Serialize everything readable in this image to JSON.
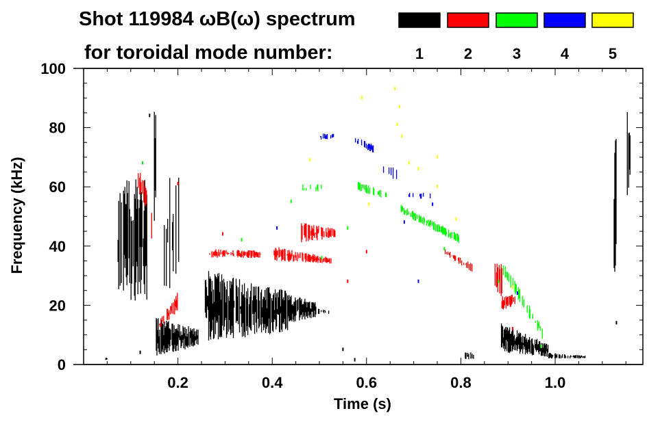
{
  "chart_data": {
    "type": "heatmap",
    "title_line1": "Shot 119984 ωB(ω) spectrum",
    "title_line2": "for toroidal mode number:",
    "xlabel": "Time (s)",
    "ylabel": "Frequency (kHz)",
    "xlim": [
      0,
      1.186
    ],
    "ylim": [
      0,
      100
    ],
    "x_ticks": [
      {
        "v": 0.2,
        "label": "0.2"
      },
      {
        "v": 0.4,
        "label": "0.4"
      },
      {
        "v": 0.6,
        "label": "0.6"
      },
      {
        "v": 0.8,
        "label": "0.8"
      },
      {
        "v": 1.0,
        "label": "1.0"
      }
    ],
    "y_ticks": [
      {
        "v": 0,
        "label": "0"
      },
      {
        "v": 20,
        "label": "20"
      },
      {
        "v": 40,
        "label": "40"
      },
      {
        "v": 60,
        "label": "60"
      },
      {
        "v": 80,
        "label": "80"
      },
      {
        "v": 100,
        "label": "100"
      }
    ],
    "x_minor_step": 0.05,
    "y_minor_step": 5,
    "legend": [
      {
        "mode": "1",
        "label": "1",
        "color": "#000000"
      },
      {
        "mode": "2",
        "label": "2",
        "color": "#ff0000"
      },
      {
        "mode": "3",
        "label": "3",
        "color": "#00ff00"
      },
      {
        "mode": "4",
        "label": "4",
        "color": "#0000ff"
      },
      {
        "mode": "5",
        "label": "5",
        "color": "#ffff00"
      }
    ],
    "regions": [
      {
        "mode": "1",
        "t": [
          0.073,
          0.135
        ],
        "f_start": [
          22,
          62
        ],
        "f_end": [
          21,
          63
        ],
        "density": 0.75
      },
      {
        "mode": "1",
        "t": [
          0.15,
          0.154
        ],
        "f_start": [
          45,
          86
        ],
        "f_end": [
          45,
          86
        ],
        "density": 0.8
      },
      {
        "mode": "1",
        "t": [
          0.171,
          0.215
        ],
        "f_start": [
          20,
          66
        ],
        "f_end": [
          35,
          67
        ],
        "density": 0.3
      },
      {
        "mode": "1",
        "t": [
          0.154,
          0.244
        ],
        "f_start": [
          3,
          16
        ],
        "f_end": [
          6,
          12
        ],
        "density": 0.95
      },
      {
        "mode": "1",
        "t": [
          0.258,
          0.338
        ],
        "f_start": [
          8,
          32
        ],
        "f_end": [
          9,
          29
        ],
        "density": 0.95
      },
      {
        "mode": "1",
        "t": [
          0.338,
          0.433
        ],
        "f_start": [
          9,
          28
        ],
        "f_end": [
          11,
          25
        ],
        "density": 0.9
      },
      {
        "mode": "1",
        "t": [
          0.433,
          0.494
        ],
        "f_start": [
          14,
          24
        ],
        "f_end": [
          16,
          21
        ],
        "density": 0.9
      },
      {
        "mode": "1",
        "t": [
          0.498,
          0.52
        ],
        "f_start": [
          17,
          19
        ],
        "f_end": [
          17,
          19
        ],
        "density": 0.6
      },
      {
        "mode": "1",
        "t": [
          0.805,
          0.83
        ],
        "f_start": [
          1.5,
          4
        ],
        "f_end": [
          2,
          4.5
        ],
        "density": 0.4
      },
      {
        "mode": "1",
        "t": [
          0.886,
          0.985
        ],
        "f_start": [
          4,
          14
        ],
        "f_end": [
          2.5,
          7
        ],
        "density": 0.95
      },
      {
        "mode": "1",
        "t": [
          0.985,
          1.064
        ],
        "f_start": [
          2,
          4
        ],
        "f_end": [
          2,
          3
        ],
        "density": 0.7
      },
      {
        "mode": "1",
        "t": [
          1.125,
          1.131
        ],
        "f_start": [
          30,
          80
        ],
        "f_end": [
          35,
          75
        ],
        "density": 0.8
      },
      {
        "mode": "1",
        "t": [
          1.153,
          1.159
        ],
        "f_start": [
          55,
          87
        ],
        "f_end": [
          60,
          84
        ],
        "density": 0.9
      },
      {
        "mode": "1",
        "t": [
          0.047,
          0.051
        ],
        "f_start": [
          1,
          2.5
        ],
        "f_end": [
          1,
          2.5
        ],
        "density": 1
      },
      {
        "mode": "2",
        "t": [
          0.116,
          0.135
        ],
        "f_start": [
          58,
          67
        ],
        "f_end": [
          52,
          62
        ],
        "density": 0.6
      },
      {
        "mode": "2",
        "t": [
          0.14,
          0.145
        ],
        "f_start": [
          38,
          58
        ],
        "f_end": [
          40,
          56
        ],
        "density": 0.5
      },
      {
        "mode": "2",
        "t": [
          0.161,
          0.203
        ],
        "f_start": [
          12,
          15
        ],
        "f_end": [
          18,
          26
        ],
        "density": 0.5
      },
      {
        "mode": "2",
        "t": [
          0.266,
          0.375
        ],
        "f_start": [
          36,
          39
        ],
        "f_end": [
          36,
          38.5
        ],
        "density": 0.7
      },
      {
        "mode": "2",
        "t": [
          0.404,
          0.527
        ],
        "f_start": [
          35,
          40
        ],
        "f_end": [
          34,
          36
        ],
        "density": 0.75
      },
      {
        "mode": "2",
        "t": [
          0.462,
          0.534
        ],
        "f_start": [
          41,
          48
        ],
        "f_end": [
          43,
          46
        ],
        "density": 0.8
      },
      {
        "mode": "2",
        "t": [
          0.767,
          0.825
        ],
        "f_start": [
          37,
          39
        ],
        "f_end": [
          31,
          34
        ],
        "density": 0.5
      },
      {
        "mode": "2",
        "t": [
          0.871,
          0.887
        ],
        "f_start": [
          26,
          36
        ],
        "f_end": [
          22,
          34
        ],
        "density": 0.6
      },
      {
        "mode": "2",
        "t": [
          0.887,
          0.915
        ],
        "f_start": [
          18,
          23
        ],
        "f_end": [
          20,
          24
        ],
        "density": 0.7
      },
      {
        "mode": "3",
        "t": [
          0.578,
          0.65
        ],
        "f_start": [
          59,
          62
        ],
        "f_end": [
          55,
          58
        ],
        "density": 0.6
      },
      {
        "mode": "3",
        "t": [
          0.672,
          0.796
        ],
        "f_start": [
          51,
          54
        ],
        "f_end": [
          41,
          44
        ],
        "density": 0.65
      },
      {
        "mode": "3",
        "t": [
          0.89,
          0.975
        ],
        "f_start": [
          30,
          35
        ],
        "f_end": [
          8,
          12
        ],
        "density": 0.45
      },
      {
        "mode": "3",
        "t": [
          0.462,
          0.505
        ],
        "f_start": [
          58,
          61
        ],
        "f_end": [
          58,
          61
        ],
        "density": 0.2
      },
      {
        "mode": "4",
        "t": [
          0.498,
          0.53
        ],
        "f_start": [
          76,
          78
        ],
        "f_end": [
          76,
          78
        ],
        "density": 0.5
      },
      {
        "mode": "4",
        "t": [
          0.575,
          0.618
        ],
        "f_start": [
          75,
          77
        ],
        "f_end": [
          71,
          74
        ],
        "density": 0.5
      },
      {
        "mode": "4",
        "t": [
          0.636,
          0.665
        ],
        "f_start": [
          64,
          68
        ],
        "f_end": [
          62,
          66
        ],
        "density": 0.25
      },
      {
        "mode": "4",
        "t": [
          0.69,
          0.746
        ],
        "f_start": [
          56,
          58
        ],
        "f_end": [
          56,
          58
        ],
        "density": 0.2
      }
    ],
    "points": [
      {
        "mode": "5",
        "t": [
          0.66
        ],
        "f": 93
      },
      {
        "mode": "5",
        "t": [
          0.59
        ],
        "f": 90
      },
      {
        "mode": "5",
        "t": [
          0.67
        ],
        "f": 87
      },
      {
        "mode": "5",
        "t": [
          0.665
        ],
        "f": 81
      },
      {
        "mode": "5",
        "t": [
          0.675
        ],
        "f": 77
      },
      {
        "mode": "5",
        "t": [
          0.69
        ],
        "f": 68
      },
      {
        "mode": "5",
        "t": [
          0.71
        ],
        "f": 66
      },
      {
        "mode": "5",
        "t": [
          0.605
        ],
        "f": 54
      },
      {
        "mode": "5",
        "t": [
          0.75
        ],
        "f": 60
      },
      {
        "mode": "5",
        "t": [
          0.79
        ],
        "f": 49
      },
      {
        "mode": "5",
        "t": [
          0.48
        ],
        "f": 69
      },
      {
        "mode": "5",
        "t": [
          0.91
        ],
        "f": 26
      },
      {
        "mode": "5",
        "t": [
          0.75
        ],
        "f": 70
      },
      {
        "mode": "4",
        "t": [
          0.71
        ],
        "f": 28
      },
      {
        "mode": "4",
        "t": [
          0.68
        ],
        "f": 48
      },
      {
        "mode": "4",
        "t": [
          0.41
        ],
        "f": 46
      },
      {
        "mode": "4",
        "t": [
          0.92
        ],
        "f": 24
      },
      {
        "mode": "4",
        "t": [
          0.74
        ],
        "f": 54
      },
      {
        "mode": "3",
        "t": [
          0.44
        ],
        "f": 55
      },
      {
        "mode": "3",
        "t": [
          0.335
        ],
        "f": 42
      },
      {
        "mode": "3",
        "t": [
          0.505
        ],
        "f": 36
      },
      {
        "mode": "3",
        "t": [
          0.765
        ],
        "f": 39
      },
      {
        "mode": "3",
        "t": [
          0.56
        ],
        "f": 46
      },
      {
        "mode": "3",
        "t": [
          0.125
        ],
        "f": 68
      },
      {
        "mode": "3",
        "t": [
          0.88
        ],
        "f": 28
      },
      {
        "mode": "3",
        "t": [
          0.97
        ],
        "f": 6
      },
      {
        "mode": "2",
        "t": [
          0.6
        ],
        "f": 38
      },
      {
        "mode": "2",
        "t": [
          0.56
        ],
        "f": 28
      },
      {
        "mode": "2",
        "t": [
          0.91
        ],
        "f": 12
      },
      {
        "mode": "2",
        "t": [
          0.2
        ],
        "f": 61
      },
      {
        "mode": "2",
        "t": [
          0.295
        ],
        "f": 44
      },
      {
        "mode": "1",
        "t": [
          0.14
        ],
        "f": 84
      },
      {
        "mode": "1",
        "t": [
          0.55
        ],
        "f": 5
      },
      {
        "mode": "1",
        "t": [
          0.575
        ],
        "f": 1.5
      },
      {
        "mode": "1",
        "t": [
          0.12
        ],
        "f": 4
      },
      {
        "mode": "1",
        "t": [
          1.13
        ],
        "f": 14
      }
    ]
  }
}
